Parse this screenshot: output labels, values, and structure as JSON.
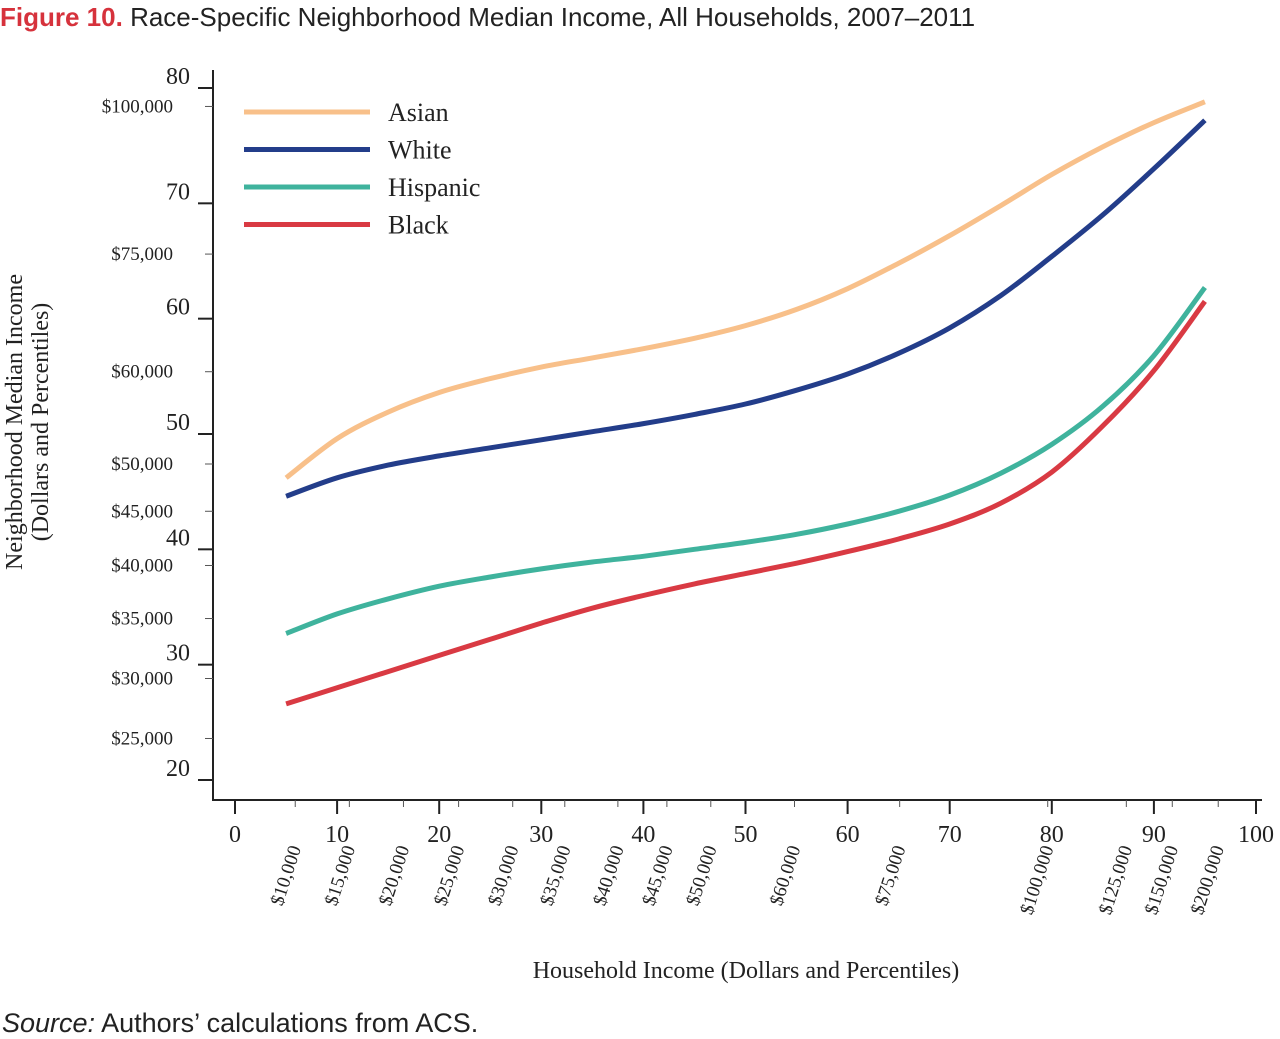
{
  "header": {
    "figure_label": "Figure 10.",
    "title_text": "Race-Specific Neighborhood Median Income, All Households, 2007–2011"
  },
  "footer": {
    "source_label": "Source:",
    "source_text": "Authors’ calculations from ACS."
  },
  "chart_data": {
    "type": "line",
    "title": "Race-Specific Neighborhood Median Income, All Households, 2007–2011",
    "xlabel": "Household Income (Dollars and Percentiles)",
    "ylabel_line1": "Neighborhood Median Income",
    "ylabel_line2": "(Dollars and Percentiles)",
    "xlim": [
      0,
      100
    ],
    "ylim": [
      20,
      80
    ],
    "grid": false,
    "legend_position": "top-left",
    "x_ticks": [
      "0",
      "10",
      "20",
      "30",
      "40",
      "50",
      "60",
      "70",
      "80",
      "90",
      "100"
    ],
    "y_ticks": [
      "20",
      "30",
      "40",
      "50",
      "60",
      "70",
      "80"
    ],
    "x_dollar_ticks": [
      {
        "label": "$10,000",
        "x": 5.9
      },
      {
        "label": "$15,000",
        "x": 11.2
      },
      {
        "label": "$20,000",
        "x": 16.5
      },
      {
        "label": "$25,000",
        "x": 21.9
      },
      {
        "label": "$30,000",
        "x": 27.2
      },
      {
        "label": "$35,000",
        "x": 32.3
      },
      {
        "label": "$40,000",
        "x": 37.5
      },
      {
        "label": "$45,000",
        "x": 42.3
      },
      {
        "label": "$50,000",
        "x": 46.6
      },
      {
        "label": "$60,000",
        "x": 54.8
      },
      {
        "label": "$75,000",
        "x": 65.1
      },
      {
        "label": "$100,000",
        "x": 79.6
      },
      {
        "label": "$125,000",
        "x": 87.3
      },
      {
        "label": "$150,000",
        "x": 91.8
      },
      {
        "label": "$200,000",
        "x": 96.3
      }
    ],
    "y_dollar_ticks": [
      {
        "label": "$100,000",
        "y": 78.4
      },
      {
        "label": "$75,000",
        "y": 65.6
      },
      {
        "label": "$60,000",
        "y": 55.4
      },
      {
        "label": "$50,000",
        "y": 47.4
      },
      {
        "label": "$45,000",
        "y": 43.3
      },
      {
        "label": "$40,000",
        "y": 38.6
      },
      {
        "label": "$35,000",
        "y": 34.0
      },
      {
        "label": "$30,000",
        "y": 28.8
      },
      {
        "label": "$25,000",
        "y": 23.6
      }
    ],
    "x": [
      5,
      10,
      15,
      20,
      25,
      30,
      35,
      40,
      45,
      50,
      55,
      60,
      65,
      70,
      75,
      80,
      85,
      90,
      95
    ],
    "series": [
      {
        "name": "Asian",
        "color": "#f8c08a",
        "values": [
          46.2,
          49.6,
          51.9,
          53.6,
          54.8,
          55.8,
          56.6,
          57.4,
          58.3,
          59.4,
          60.8,
          62.6,
          64.8,
          67.2,
          69.8,
          72.5,
          74.9,
          77.0,
          78.8
        ]
      },
      {
        "name": "White",
        "color": "#233d8a",
        "values": [
          44.6,
          46.2,
          47.3,
          48.1,
          48.8,
          49.5,
          50.2,
          50.9,
          51.7,
          52.6,
          53.8,
          55.2,
          57.0,
          59.2,
          62.0,
          65.4,
          69.0,
          73.0,
          77.2
        ]
      },
      {
        "name": "Hispanic",
        "color": "#3fb39d",
        "values": [
          32.7,
          34.4,
          35.7,
          36.8,
          37.6,
          38.3,
          38.9,
          39.4,
          40.0,
          40.6,
          41.3,
          42.2,
          43.3,
          44.7,
          46.6,
          49.1,
          52.4,
          56.8,
          62.7
        ]
      },
      {
        "name": "Black",
        "color": "#d93a43",
        "values": [
          26.6,
          28.0,
          29.4,
          30.8,
          32.2,
          33.6,
          34.9,
          36.0,
          37.0,
          37.9,
          38.8,
          39.8,
          40.9,
          42.2,
          44.0,
          46.7,
          50.7,
          55.5,
          61.5
        ]
      }
    ]
  }
}
